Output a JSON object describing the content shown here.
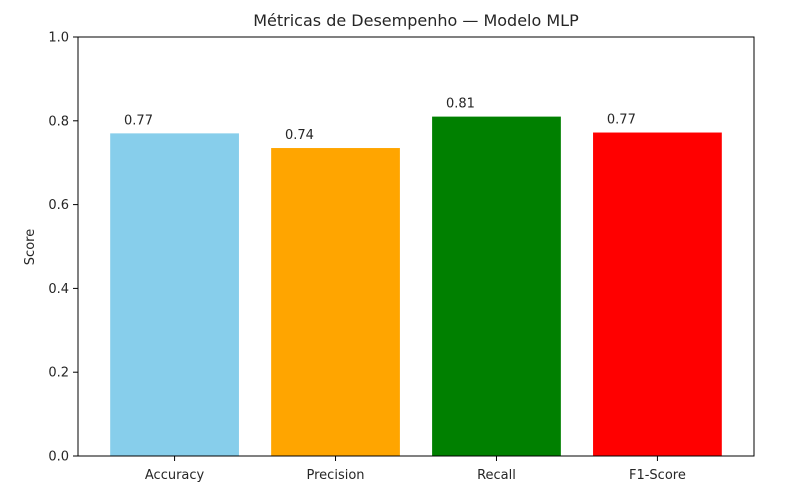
{
  "chart_data": {
    "type": "bar",
    "title": "Métricas de Desempenho — Modelo MLP",
    "xlabel": "",
    "ylabel": "Score",
    "ylim": [
      0,
      1.0
    ],
    "yticks": [
      "0.0",
      "0.2",
      "0.4",
      "0.6",
      "0.8",
      "1.0"
    ],
    "ytick_values": [
      0,
      0.2,
      0.4,
      0.6,
      0.8,
      1.0
    ],
    "categories": [
      "Accuracy",
      "Precision",
      "Recall",
      "F1-Score"
    ],
    "values": [
      0.77,
      0.735,
      0.81,
      0.772
    ],
    "value_labels": [
      "0.77",
      "0.74",
      "0.81",
      "0.77"
    ],
    "colors": [
      "#87ceeb",
      "#ffa500",
      "#008000",
      "#ff0000"
    ],
    "grid": false,
    "legend": "none"
  }
}
